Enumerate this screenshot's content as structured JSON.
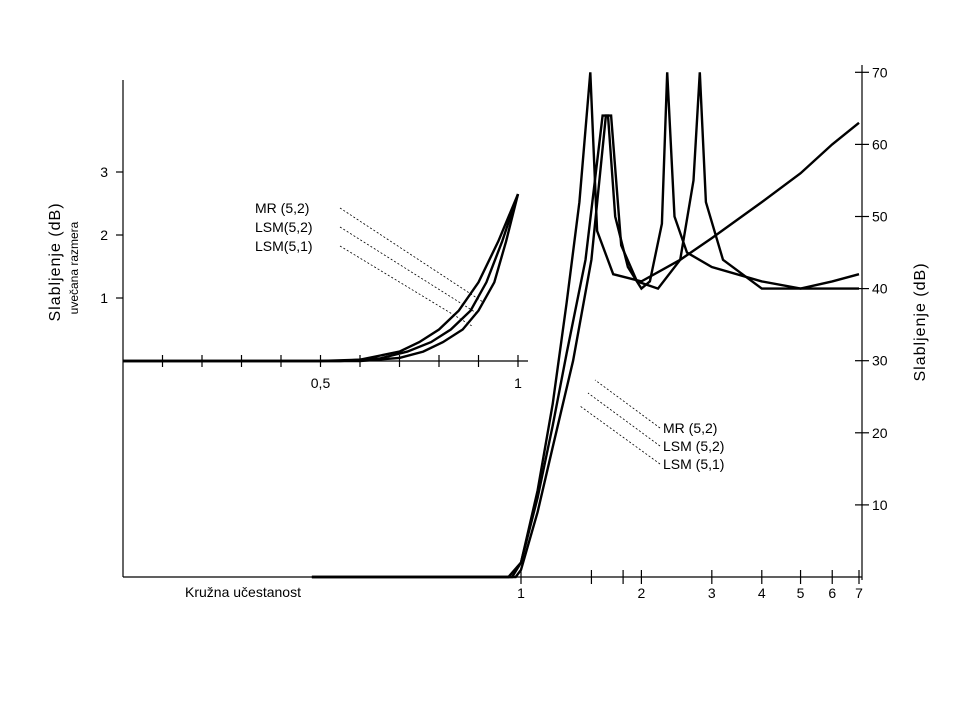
{
  "chart_data": [
    {
      "type": "line",
      "title": "",
      "ylabel": "Slabljenje  (dB)",
      "ylabel_sub": "uvečana razmera",
      "xlabel": "",
      "xlim": [
        0,
        1
      ],
      "ylim": [
        0,
        3
      ],
      "x_tick_labels": [
        {
          "value": 0.5,
          "label": "0,5"
        },
        {
          "value": 1,
          "label": "1"
        }
      ],
      "x_minor_ticks": [
        0.1,
        0.2,
        0.3,
        0.4,
        0.6,
        0.7,
        0.8,
        0.9
      ],
      "y_ticks": [
        1,
        2,
        3
      ],
      "grid": false,
      "series": [
        {
          "name": "MR (5,2)",
          "x": [
            0,
            0.5,
            0.6,
            0.7,
            0.75,
            0.8,
            0.85,
            0.9,
            0.95,
            1.0
          ],
          "y": [
            0,
            0,
            0.02,
            0.15,
            0.3,
            0.5,
            0.8,
            1.25,
            1.9,
            2.65
          ]
        },
        {
          "name": "LSM(5,2)",
          "x": [
            0,
            0.55,
            0.65,
            0.72,
            0.78,
            0.83,
            0.88,
            0.92,
            0.96,
            1.0
          ],
          "y": [
            0,
            0,
            0.04,
            0.15,
            0.3,
            0.5,
            0.8,
            1.25,
            1.9,
            2.65
          ]
        },
        {
          "name": "LSM(5,1)",
          "x": [
            0,
            0.6,
            0.7,
            0.76,
            0.81,
            0.86,
            0.9,
            0.94,
            0.97,
            1.0
          ],
          "y": [
            0,
            0,
            0.05,
            0.15,
            0.3,
            0.5,
            0.8,
            1.25,
            1.9,
            2.65
          ]
        }
      ],
      "legend_labels": [
        "MR (5,2)",
        "LSM(5,2)",
        "LSM(5,1)"
      ]
    },
    {
      "type": "line",
      "title": "",
      "xlabel": "Kružna učestanost",
      "ylabel": "Slabljenje (dB)",
      "x_scale": "log",
      "xlim": [
        0.3,
        7
      ],
      "ylim": [
        0,
        70
      ],
      "x_tick_labels": [
        {
          "value": 1,
          "label": "1"
        },
        {
          "value": 2,
          "label": "2"
        },
        {
          "value": 3,
          "label": "3"
        },
        {
          "value": 4,
          "label": "4"
        },
        {
          "value": 5,
          "label": "5"
        },
        {
          "value": 6,
          "label": "6"
        },
        {
          "value": 7,
          "label": "7"
        }
      ],
      "x_minor_ticks": [
        1.5,
        1.8
      ],
      "y_ticks": [
        10,
        20,
        30,
        40,
        50,
        60,
        70
      ],
      "y_axis_side": "right",
      "grid": false,
      "series": [
        {
          "name": "MR (5,2)",
          "x": [
            0.3,
            0.93,
            1.0,
            1.1,
            1.2,
            1.3,
            1.4,
            1.49,
            1.55,
            1.7,
            2.0,
            2.5,
            3.0,
            4.0,
            5.0,
            6.0,
            7.0
          ],
          "y": [
            0,
            0,
            2,
            12,
            24,
            38,
            52,
            70,
            48,
            42,
            41,
            44,
            47,
            52,
            56,
            60,
            63
          ]
        },
        {
          "name": "LSM (5,2)",
          "x": [
            0.3,
            0.95,
            1.0,
            1.1,
            1.2,
            1.3,
            1.45,
            1.6,
            1.65,
            1.72,
            1.85,
            2.0,
            2.1,
            2.25,
            2.32,
            2.42,
            2.6,
            3.0,
            4.0,
            5.0,
            6.0,
            7.0
          ],
          "y": [
            0,
            0,
            2,
            11,
            21,
            31,
            44,
            64,
            64,
            50,
            43,
            40,
            41,
            49,
            70,
            50,
            45,
            43,
            41,
            40,
            40,
            40
          ]
        },
        {
          "name": "LSM (5,1)",
          "x": [
            0.3,
            0.97,
            1.0,
            1.1,
            1.2,
            1.35,
            1.5,
            1.63,
            1.68,
            1.78,
            1.95,
            2.2,
            2.5,
            2.7,
            2.8,
            2.9,
            3.2,
            4.0,
            5.0,
            6.0,
            7.0
          ],
          "y": [
            0,
            0,
            1,
            9,
            18,
            30,
            44,
            64,
            64,
            46,
            41,
            40,
            44,
            55,
            70,
            52,
            44,
            40,
            40,
            41,
            42
          ]
        }
      ],
      "legend_labels": [
        "MR (5,2)",
        "LSM (5,2)",
        "LSM (5,1)"
      ]
    }
  ]
}
